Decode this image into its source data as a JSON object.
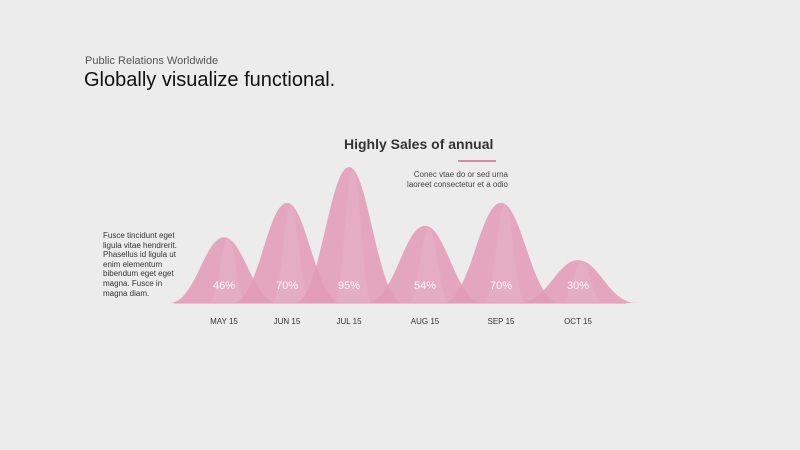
{
  "header": {
    "subtitle": "Public Relations Worldwide",
    "title": "Globally visualize functional."
  },
  "chart_data": {
    "type": "area",
    "title": "Highly Sales of annual",
    "description": "Conec vtae do or sed urna laoreet consectetur et a odio",
    "categories": [
      "MAY 15",
      "JUN 15",
      "JUL 15",
      "AUG 15",
      "SEP 15",
      "OCT 15"
    ],
    "values": [
      46,
      70,
      95,
      54,
      70,
      30
    ],
    "data_labels": [
      "46%",
      "70%",
      "95%",
      "54%",
      "70%",
      "30%"
    ],
    "ylim": [
      0,
      100
    ],
    "color": "#e29ab6",
    "grid": false,
    "legend": "none"
  },
  "side_note": "Fusce tincidunt eget ligula vitae hendrerit. Phasellus id ligula ut enim elementum bibendum eget eget magna. Fusce in magna diam."
}
